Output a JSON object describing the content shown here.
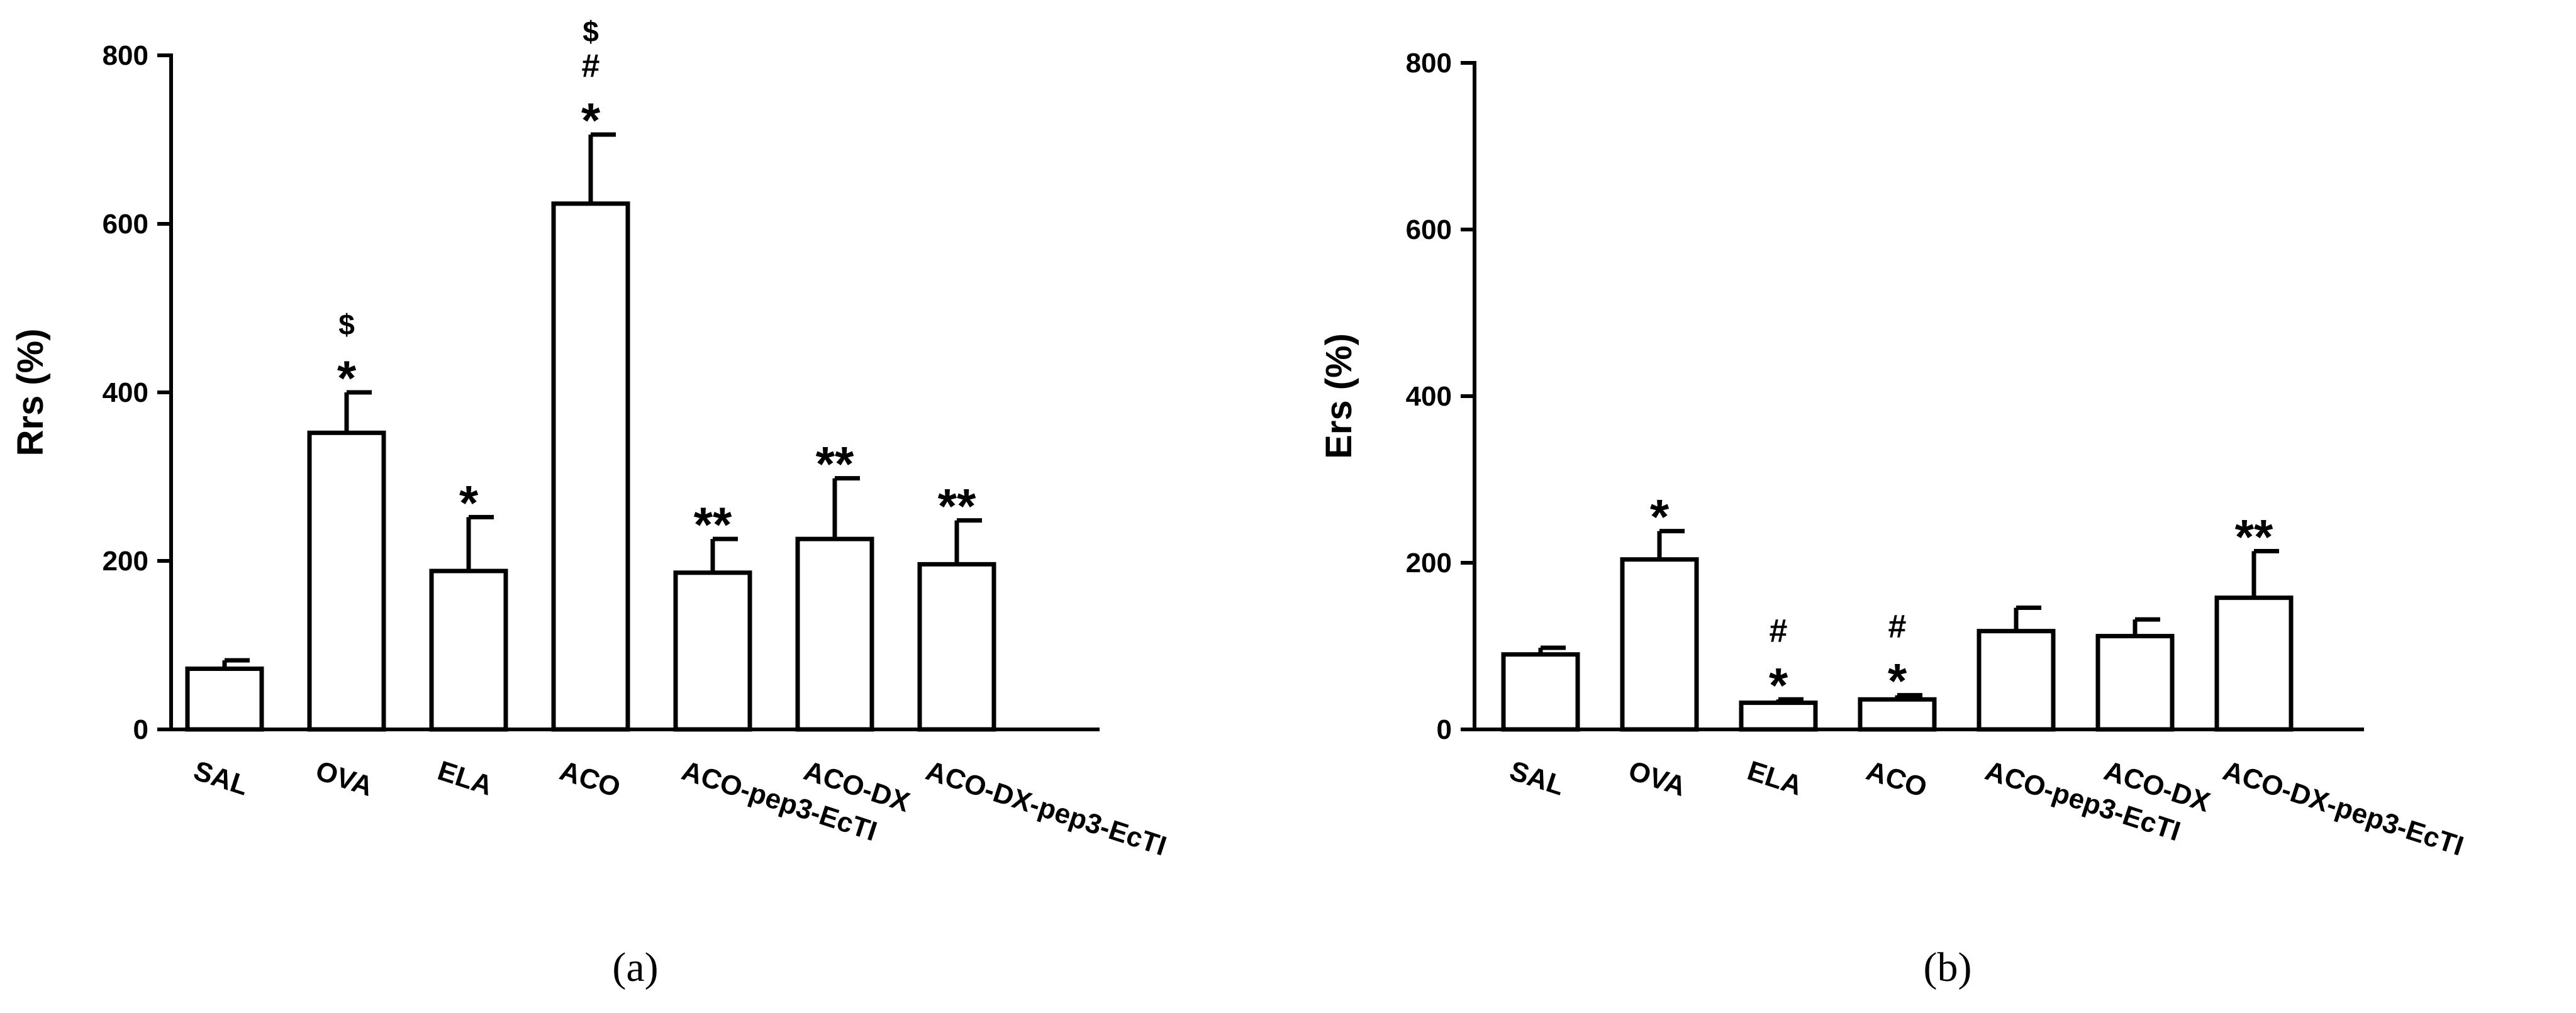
{
  "chart_data": [
    {
      "type": "bar",
      "panel_label": "(a)",
      "ylabel": "Rrs (%)",
      "xlabel": "",
      "ylim": [
        0,
        800
      ],
      "yticks": [
        0,
        200,
        400,
        600,
        800
      ],
      "categories": [
        "SAL",
        "OVA",
        "ELA",
        "ACO",
        "ACO-pep3-EcTI",
        "ACO-DX",
        "ACO-DX-pep3-EcTI"
      ],
      "values": [
        72,
        352,
        188,
        624,
        186,
        226,
        196
      ],
      "error": [
        10,
        48,
        64,
        82,
        40,
        72,
        52
      ],
      "annotations": [
        [],
        [
          "*",
          "$"
        ],
        [
          "*"
        ],
        [
          "*",
          "#",
          "$"
        ],
        [
          "**"
        ],
        [
          "**"
        ],
        [
          "**"
        ]
      ]
    },
    {
      "type": "bar",
      "panel_label": "(b)",
      "ylabel": "Ers (%)",
      "xlabel": "",
      "ylim": [
        0,
        800
      ],
      "yticks": [
        0,
        200,
        400,
        600,
        800
      ],
      "categories": [
        "SAL",
        "OVA",
        "ELA",
        "ACO",
        "ACO-pep3-EcTI",
        "ACO-DX",
        "ACO-DX-pep3-EcTI"
      ],
      "values": [
        90,
        204,
        32,
        36,
        118,
        112,
        158
      ],
      "error": [
        8,
        34,
        4,
        5,
        28,
        20,
        56
      ],
      "annotations": [
        [],
        [
          "*"
        ],
        [
          "*",
          "#"
        ],
        [
          "*",
          "#"
        ],
        [],
        [],
        [
          "**"
        ]
      ]
    }
  ]
}
